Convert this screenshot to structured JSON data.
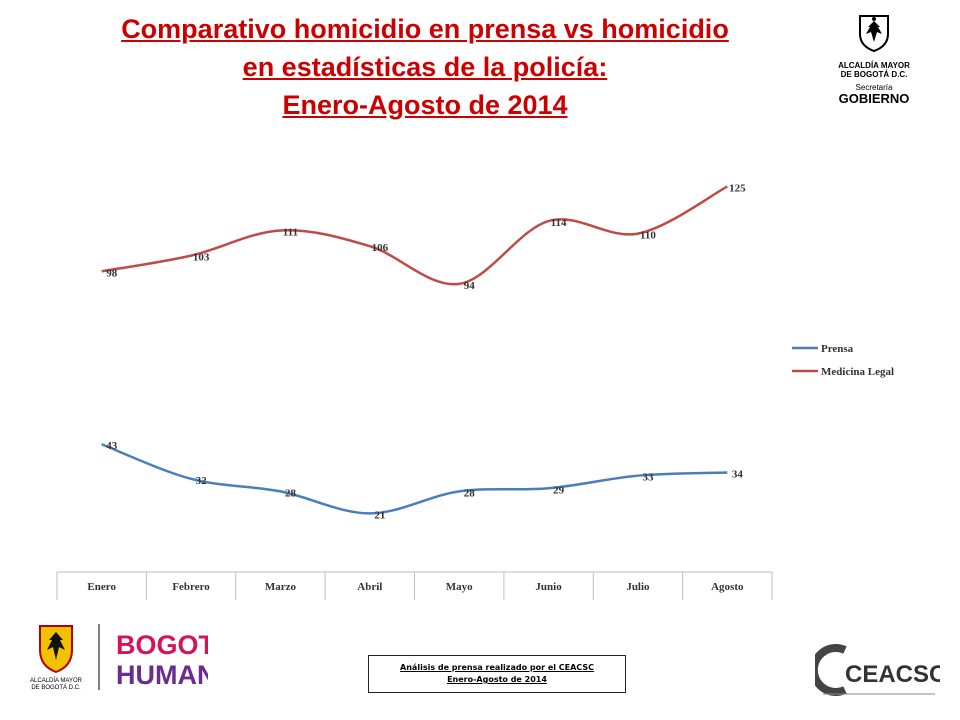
{
  "title": {
    "line1": "Comparativo homicidio en prensa vs homicidio",
    "line2": "en estadísticas de la policía:",
    "line3": "Enero-Agosto de 2014"
  },
  "logo_top": {
    "line1": "ALCALDÍA MAYOR",
    "line2": "DE BOGOTÁ D.C.",
    "line3": "Secretaría",
    "line4": "GOBIERNO"
  },
  "logo_bogota": {
    "line1": "ALCALDÍA MAYOR",
    "line2": "DE BOGOTÁ D.C.",
    "word1": "BOGOTÁ",
    "word2": "HUMANA"
  },
  "logo_ceacsc": {
    "text": "CEACSC"
  },
  "source": {
    "line1": "Análisis de prensa realizado por el CEACSC",
    "line2": "Enero-Agosto de 2014"
  },
  "colors": {
    "prensa": "#4a7ebb",
    "medicina": "#be4b48",
    "title": "#cc0000"
  },
  "chart_data": {
    "type": "line",
    "categories": [
      "Enero",
      "Febrero",
      "Marzo",
      "Abril",
      "Mayo",
      "Junio",
      "Julio",
      "Agosto"
    ],
    "series": [
      {
        "name": "Prensa",
        "values": [
          43,
          32,
          28,
          21,
          28,
          29,
          33,
          34
        ],
        "color": "#4a7ebb"
      },
      {
        "name": "Medicina Legal",
        "values": [
          98,
          103,
          111,
          106,
          94,
          114,
          110,
          125
        ],
        "color": "#be4b48"
      }
    ],
    "ylim": [
      10,
      135
    ],
    "grid": false,
    "legend_position": "right",
    "data_labels": true
  }
}
